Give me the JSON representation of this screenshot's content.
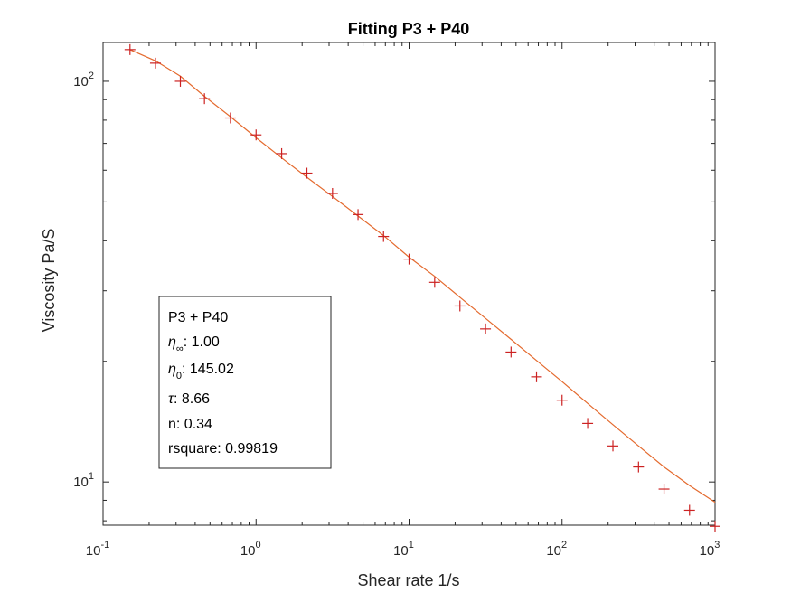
{
  "chart_data": {
    "type": "scatter",
    "title": "Fitting P3 + P40",
    "xlabel": "Shear rate 1/s",
    "ylabel": "Viscosity Pa/S",
    "xscale": "log",
    "yscale": "log",
    "xlim": [
      0.1,
      1000
    ],
    "ylim": [
      7.8,
      125
    ],
    "grid": false,
    "x_ticks": [
      {
        "base": "10",
        "exp": "-1"
      },
      {
        "base": "10",
        "exp": "0"
      },
      {
        "base": "10",
        "exp": "1"
      },
      {
        "base": "10",
        "exp": "2"
      },
      {
        "base": "10",
        "exp": "3"
      }
    ],
    "y_ticks": [
      {
        "base": "10",
        "exp": "1"
      },
      {
        "base": "10",
        "exp": "2"
      }
    ],
    "series": [
      {
        "marker": "+",
        "color": "#cc2222",
        "points": [
          {
            "x": 0.15,
            "y": 120
          },
          {
            "x": 0.22,
            "y": 111
          },
          {
            "x": 0.32,
            "y": 100
          },
          {
            "x": 0.46,
            "y": 90.5
          },
          {
            "x": 0.68,
            "y": 81
          },
          {
            "x": 1.0,
            "y": 73.5
          },
          {
            "x": 1.47,
            "y": 66
          },
          {
            "x": 2.15,
            "y": 59
          },
          {
            "x": 3.16,
            "y": 52.5
          },
          {
            "x": 4.64,
            "y": 46.5
          },
          {
            "x": 6.81,
            "y": 41
          },
          {
            "x": 10.0,
            "y": 36
          },
          {
            "x": 14.7,
            "y": 31.5
          },
          {
            "x": 21.5,
            "y": 27.5
          },
          {
            "x": 31.6,
            "y": 24.1
          },
          {
            "x": 46.4,
            "y": 21.1
          },
          {
            "x": 68.1,
            "y": 18.3
          },
          {
            "x": 100,
            "y": 16.0
          },
          {
            "x": 147,
            "y": 14.0
          },
          {
            "x": 215,
            "y": 12.3
          },
          {
            "x": 316,
            "y": 10.9
          },
          {
            "x": 464,
            "y": 9.6
          },
          {
            "x": 681,
            "y": 8.5
          },
          {
            "x": 1000,
            "y": 7.75
          }
        ]
      },
      {
        "color": "#e46a2e",
        "line": true,
        "points": [
          {
            "x": 0.15,
            "y": 120
          },
          {
            "x": 0.22,
            "y": 112.5
          },
          {
            "x": 0.32,
            "y": 103
          },
          {
            "x": 0.46,
            "y": 91.7
          },
          {
            "x": 0.68,
            "y": 81.6
          },
          {
            "x": 1.0,
            "y": 72.3
          },
          {
            "x": 1.47,
            "y": 64.4
          },
          {
            "x": 2.15,
            "y": 57.6
          },
          {
            "x": 3.16,
            "y": 51.6
          },
          {
            "x": 4.64,
            "y": 46.1
          },
          {
            "x": 6.81,
            "y": 41.2
          },
          {
            "x": 10.0,
            "y": 36.4
          },
          {
            "x": 14.7,
            "y": 32.6
          },
          {
            "x": 21.5,
            "y": 28.9
          },
          {
            "x": 31.6,
            "y": 25.6
          },
          {
            "x": 46.4,
            "y": 22.7
          },
          {
            "x": 68.1,
            "y": 20.1
          },
          {
            "x": 100,
            "y": 17.8
          },
          {
            "x": 147,
            "y": 15.7
          },
          {
            "x": 215,
            "y": 13.9
          },
          {
            "x": 316,
            "y": 12.3
          },
          {
            "x": 464,
            "y": 10.9
          },
          {
            "x": 681,
            "y": 9.8
          },
          {
            "x": 1000,
            "y": 8.9
          }
        ]
      }
    ],
    "annotation": {
      "title": "P3 + P40",
      "eta_inf": {
        "sub": "∞",
        "value": ": 1.00"
      },
      "eta_0": {
        "sub": "0",
        "value": ": 145.02"
      },
      "tau": {
        "value": ": 8.66"
      },
      "n_line": "n: 0.34",
      "rsquare_line": "rsquare: 0.99819"
    }
  }
}
